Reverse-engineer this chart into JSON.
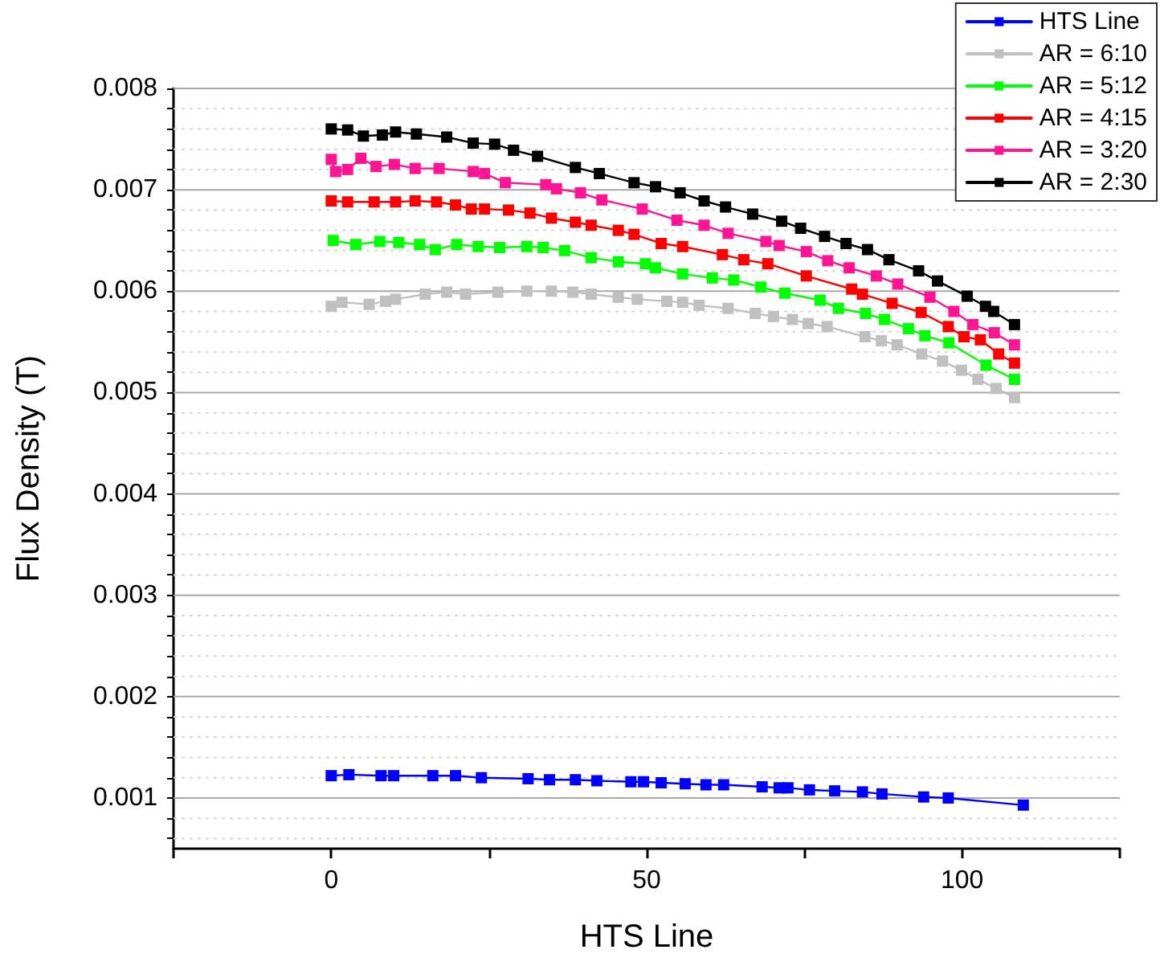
{
  "chart_data": {
    "type": "line",
    "xlabel": "HTS Line",
    "ylabel": "Flux Density (T)",
    "xlim": [
      -25,
      125
    ],
    "ylim": [
      0.0005,
      0.008
    ],
    "xticks": [
      {
        "value": -25,
        "label": null
      },
      0,
      {
        "value": 25,
        "label": null
      },
      50,
      {
        "value": 75,
        "label": null
      },
      100,
      {
        "value": 125,
        "label": null
      }
    ],
    "yticks": [
      {
        "value": 0.0006,
        "label": null
      },
      {
        "value": 0.0008,
        "label": null
      },
      0.001,
      {
        "value": 0.0012,
        "label": null
      },
      {
        "value": 0.0014,
        "label": null
      },
      {
        "value": 0.0016,
        "label": null
      },
      {
        "value": 0.0018,
        "label": null
      },
      0.002,
      {
        "value": 0.0022,
        "label": null
      },
      {
        "value": 0.0024,
        "label": null
      },
      {
        "value": 0.0026,
        "label": null
      },
      {
        "value": 0.0028,
        "label": null
      },
      0.003,
      {
        "value": 0.0032,
        "label": null
      },
      {
        "value": 0.0034,
        "label": null
      },
      {
        "value": 0.0036,
        "label": null
      },
      {
        "value": 0.0038,
        "label": null
      },
      0.004,
      {
        "value": 0.0042,
        "label": null
      },
      {
        "value": 0.0044,
        "label": null
      },
      {
        "value": 0.0046,
        "label": null
      },
      {
        "value": 0.0048,
        "label": null
      },
      0.005,
      {
        "value": 0.0052,
        "label": null
      },
      {
        "value": 0.0054,
        "label": null
      },
      {
        "value": 0.0056,
        "label": null
      },
      {
        "value": 0.0058,
        "label": null
      },
      0.006,
      {
        "value": 0.0062,
        "label": null
      },
      {
        "value": 0.0064,
        "label": null
      },
      {
        "value": 0.0066,
        "label": null
      },
      {
        "value": 0.0068,
        "label": null
      },
      0.007,
      {
        "value": 0.0072,
        "label": null
      },
      {
        "value": 0.0074,
        "label": null
      },
      {
        "value": 0.0076,
        "label": null
      },
      {
        "value": 0.0078,
        "label": null
      },
      0.008
    ],
    "grid": "y",
    "legend": "top right",
    "marker": "square",
    "line_style": "solid",
    "series": [
      {
        "name": "HTS Line",
        "color": "#0000ff",
        "x": [
          0,
          2.8,
          7.9,
          9.9,
          16.1,
          19.7,
          23.8,
          31.2,
          34.6,
          38.7,
          42.1,
          47.5,
          49.5,
          52.3,
          56.1,
          59.4,
          62.2,
          68.3,
          71,
          72.4,
          75.8,
          79.8,
          84.2,
          87.3,
          93.9,
          97.8,
          109.7
        ],
        "values": [
          0.00122,
          0.00123,
          0.00122,
          0.00122,
          0.00122,
          0.00122,
          0.0012,
          0.00119,
          0.00118,
          0.00118,
          0.00117,
          0.00116,
          0.00116,
          0.00115,
          0.00114,
          0.00113,
          0.00113,
          0.00111,
          0.0011,
          0.0011,
          0.00108,
          0.00107,
          0.00106,
          0.00104,
          0.00101,
          0.001,
          0.00093
        ]
      },
      {
        "name": "AR = 6:10",
        "color": "#c0c0c0",
        "x": [
          0,
          1.7,
          6,
          8.6,
          10.2,
          14.9,
          18.3,
          21.3,
          26.4,
          31,
          34.9,
          38.3,
          41.2,
          45.5,
          48.5,
          53.2,
          55.7,
          58.3,
          62.9,
          67.2,
          70.1,
          73.1,
          75.6,
          78.6,
          84.6,
          87.2,
          89.7,
          93.6,
          96.9,
          99.9,
          102.5,
          105.4,
          108.3
        ],
        "values": [
          0.00585,
          0.00589,
          0.00587,
          0.0059,
          0.00592,
          0.00597,
          0.00599,
          0.00597,
          0.00599,
          0.006,
          0.006,
          0.00599,
          0.00597,
          0.00594,
          0.00592,
          0.0059,
          0.00589,
          0.00586,
          0.00583,
          0.00578,
          0.00575,
          0.00572,
          0.00568,
          0.00565,
          0.00555,
          0.00551,
          0.00547,
          0.00538,
          0.00531,
          0.00522,
          0.00513,
          0.00504,
          0.00495
        ]
      },
      {
        "name": "AR = 5:12",
        "color": "#00ff00",
        "x": [
          0.3,
          3.9,
          7.7,
          10.7,
          14,
          16.5,
          19.9,
          23.3,
          26.7,
          31,
          33.6,
          37,
          41.2,
          45.5,
          49.8,
          51.4,
          55.7,
          60.4,
          63.8,
          68.1,
          71.9,
          77.5,
          80.4,
          84.7,
          87.7,
          91.5,
          94.1,
          97.9,
          103.8,
          108.3
        ],
        "values": [
          0.0065,
          0.00646,
          0.00649,
          0.00648,
          0.00646,
          0.00641,
          0.00646,
          0.00644,
          0.00643,
          0.00644,
          0.00643,
          0.0064,
          0.00633,
          0.00629,
          0.00627,
          0.00623,
          0.00617,
          0.00613,
          0.00611,
          0.00604,
          0.00598,
          0.00591,
          0.00583,
          0.00578,
          0.00572,
          0.00563,
          0.00556,
          0.00549,
          0.00527,
          0.00513
        ]
      },
      {
        "name": "AR = 4:15",
        "color": "#ff0000",
        "x": [
          0,
          2.6,
          6.8,
          10.2,
          13.3,
          16.7,
          19.7,
          22.2,
          24.3,
          28.1,
          31.5,
          34.9,
          38.7,
          41.2,
          45.5,
          48,
          52.3,
          55.7,
          62,
          65.4,
          69.2,
          75.3,
          82.5,
          84.2,
          88.9,
          93.5,
          97.8,
          100.3,
          102.9,
          105.8,
          108.3
        ],
        "values": [
          0.00689,
          0.00688,
          0.00688,
          0.00688,
          0.00689,
          0.00688,
          0.00685,
          0.00681,
          0.00681,
          0.0068,
          0.00677,
          0.00672,
          0.00668,
          0.00665,
          0.0066,
          0.00656,
          0.00647,
          0.00644,
          0.00636,
          0.00631,
          0.00627,
          0.00615,
          0.00602,
          0.00597,
          0.00588,
          0.00579,
          0.00565,
          0.00555,
          0.00552,
          0.00538,
          0.00529
        ]
      },
      {
        "name": "AR = 3:20",
        "color": "#ff1493",
        "x": [
          0,
          0.7,
          2.6,
          4.7,
          7.1,
          10,
          13.3,
          17.1,
          22.5,
          24.3,
          27.6,
          34,
          35.7,
          39.5,
          42.9,
          49.3,
          54.8,
          59.1,
          62.9,
          68.9,
          71,
          75.3,
          78.7,
          82.1,
          86.4,
          89.8,
          94.9,
          98.7,
          101.7,
          105.1,
          108.3
        ],
        "values": [
          0.0073,
          0.00718,
          0.0072,
          0.00731,
          0.00723,
          0.00725,
          0.00721,
          0.00721,
          0.00718,
          0.00716,
          0.00707,
          0.00705,
          0.00701,
          0.00697,
          0.0069,
          0.00681,
          0.0067,
          0.00665,
          0.00657,
          0.00649,
          0.00645,
          0.00639,
          0.0063,
          0.00623,
          0.00615,
          0.00607,
          0.00594,
          0.0058,
          0.00567,
          0.00559,
          0.00547
        ]
      },
      {
        "name": "AR = 2:30",
        "color": "#000000",
        "x": [
          0,
          2.6,
          5.1,
          8.1,
          10.2,
          13.5,
          18.3,
          22.5,
          25.9,
          28.9,
          32.7,
          38.7,
          42.5,
          48,
          51.4,
          55.3,
          59.1,
          62.5,
          66.8,
          71.4,
          74.4,
          78.2,
          81.6,
          85,
          88.4,
          93.1,
          96.1,
          100.8,
          103.7,
          105,
          108.3
        ],
        "values": [
          0.0076,
          0.00759,
          0.00753,
          0.00754,
          0.00757,
          0.00755,
          0.00752,
          0.00746,
          0.00745,
          0.00739,
          0.00733,
          0.00722,
          0.00716,
          0.00707,
          0.00703,
          0.00697,
          0.00689,
          0.00683,
          0.00676,
          0.00669,
          0.00662,
          0.00654,
          0.00647,
          0.00641,
          0.00631,
          0.0062,
          0.0061,
          0.00595,
          0.00585,
          0.0058,
          0.00567
        ]
      }
    ]
  }
}
